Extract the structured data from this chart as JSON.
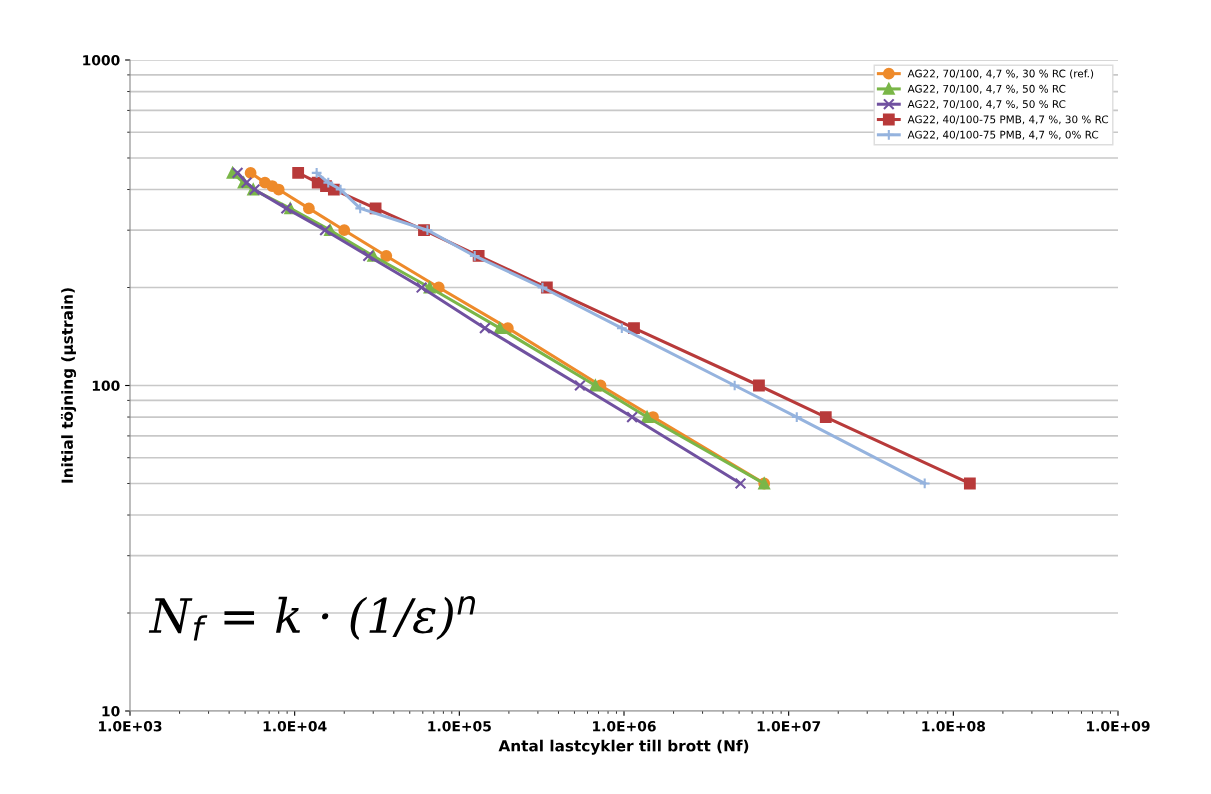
{
  "chart_data": {
    "type": "line",
    "xlabel": "Antal lastcykler till brott (Nf)",
    "ylabel": "Initial töjning (µstrain)",
    "log": "xy",
    "xlim": [
      1000,
      1000000000
    ],
    "ylim": [
      10,
      1000
    ],
    "xticks": [
      {
        "value": 1000,
        "label": "1.0E+03"
      },
      {
        "value": 10000,
        "label": "1.0E+04"
      },
      {
        "value": 100000,
        "label": "1.0E+05"
      },
      {
        "value": 1000000,
        "label": "1.0E+06"
      },
      {
        "value": 10000000,
        "label": "1.0E+07"
      },
      {
        "value": 100000000,
        "label": "1.0E+08"
      },
      {
        "value": 1000000000,
        "label": "1.0E+09"
      }
    ],
    "yticks": [
      10,
      100,
      1000
    ],
    "grid": "y",
    "legend": "top right",
    "annotations": [
      {
        "text": "N$_{f}$ = k · (1/ε)$^{n}$"
      }
    ],
    "series": [
      {
        "name": "AG22, 70/100, 4,7 %, 30 % RC (ref.)",
        "color": "#ee8a2a",
        "marker": "circle",
        "x": [
          5400,
          6600,
          7300,
          8000,
          12200,
          20000,
          36000,
          75000,
          197000,
          720000,
          1500000,
          7100000
        ],
        "values": [
          450,
          420,
          410,
          400,
          350,
          300,
          250,
          200,
          150,
          100,
          80,
          50
        ]
      },
      {
        "name": "AG22, 70/100, 4,7 %, 50 % RC",
        "color": "#7ab648",
        "marker": "triangle",
        "x": [
          4200,
          4900,
          5600,
          9400,
          16400,
          30000,
          66000,
          176000,
          670000,
          1380000,
          7100000
        ],
        "values": [
          450,
          420,
          400,
          350,
          300,
          250,
          200,
          150,
          100,
          80,
          50
        ]
      },
      {
        "name": "AG22, 70/100, 4,7 %, 50 % RC",
        "color": "#7051a0",
        "marker": "cross",
        "x": [
          4500,
          5100,
          5700,
          8900,
          15300,
          28000,
          59000,
          143000,
          540000,
          1120000,
          5100000
        ],
        "values": [
          450,
          420,
          400,
          350,
          300,
          250,
          200,
          150,
          100,
          80,
          50
        ]
      },
      {
        "name": "AG22, 40/100-75 PMB, 4,7 %, 30 % RC",
        "color": "#b83a3a",
        "marker": "square",
        "x": [
          10500,
          13800,
          15500,
          17300,
          31000,
          61000,
          131000,
          340000,
          1150000,
          6600000,
          16800000,
          126000000
        ],
        "values": [
          450,
          420,
          410,
          400,
          350,
          300,
          250,
          200,
          150,
          100,
          80,
          50
        ]
      },
      {
        "name": "AG22, 40/100-75 PMB, 4,7 %, 0% RC",
        "color": "#95b3de",
        "marker": "plus",
        "x": [
          13600,
          16000,
          19000,
          25000,
          64000,
          124000,
          320000,
          970000,
          4700000,
          11200000,
          67000000
        ],
        "values": [
          450,
          420,
          400,
          350,
          300,
          250,
          200,
          150,
          100,
          80,
          50
        ]
      }
    ]
  }
}
